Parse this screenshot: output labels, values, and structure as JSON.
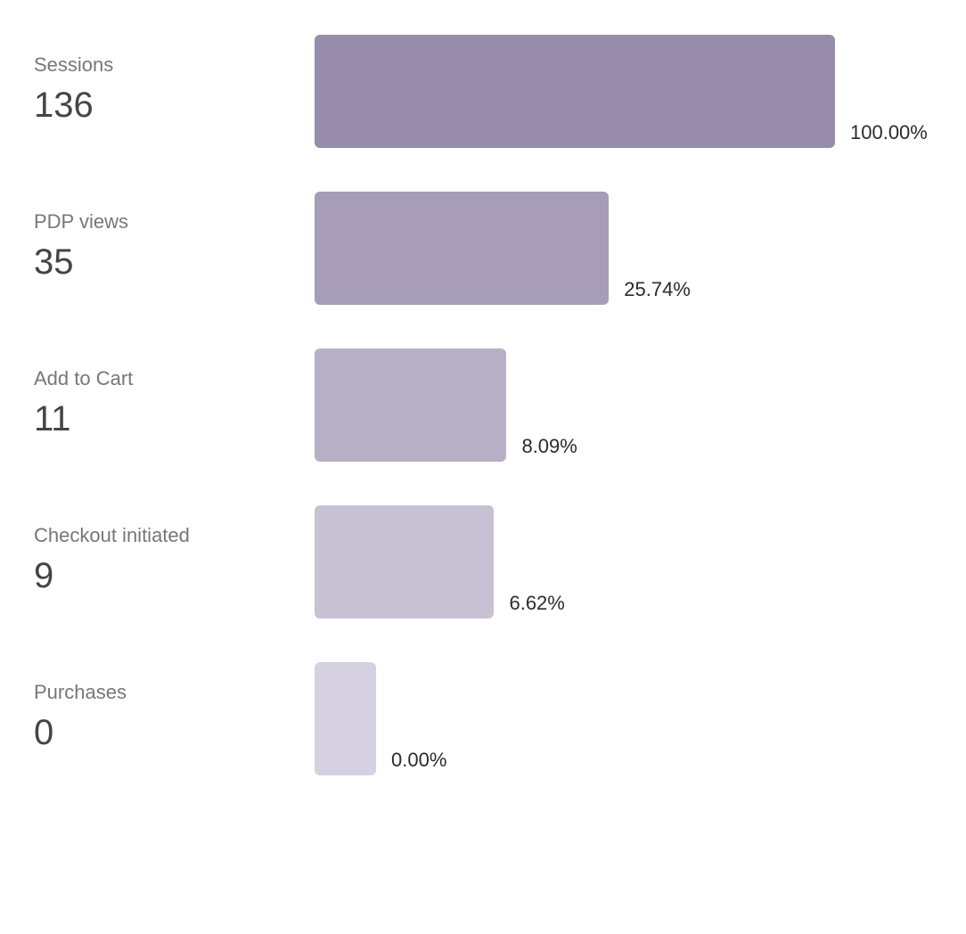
{
  "chart_data": {
    "type": "bar",
    "orientation": "horizontal",
    "categories": [
      "Sessions",
      "PDP views",
      "Add to Cart",
      "Checkout initiated",
      "Purchases"
    ],
    "values": [
      136,
      35,
      11,
      9,
      0
    ],
    "percentages": [
      "100.00%",
      "25.74%",
      "8.09%",
      "6.62%",
      "0.00%"
    ],
    "colors": [
      "#978cab",
      "#a79db8",
      "#b7afc6",
      "#c8c1d3",
      "#d5d1e0"
    ]
  }
}
